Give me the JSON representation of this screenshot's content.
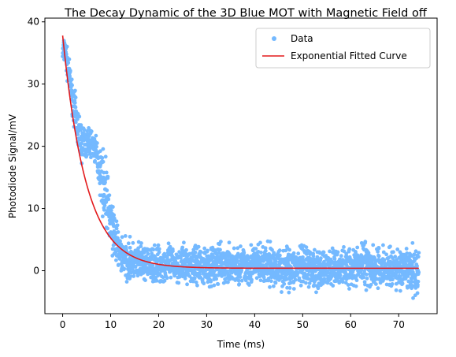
{
  "chart_data": {
    "type": "scatter",
    "title": "The Decay Dynamic of the 3D Blue MOT with Magnetic Field off",
    "xlabel": "Time (ms)",
    "ylabel": "Photodiode Signal/mV",
    "xlim": [
      -3.7,
      78
    ],
    "ylim": [
      -6.9,
      40.6
    ],
    "xticks": [
      0,
      10,
      20,
      30,
      40,
      50,
      60,
      70
    ],
    "yticks": [
      0,
      10,
      20,
      30,
      40
    ],
    "grid": false,
    "legend_position": "top-right",
    "series": [
      {
        "name": "Data",
        "kind": "scatter",
        "color": "#74b9ff",
        "x_range": [
          0,
          74.2
        ],
        "envelope": {
          "x": [
            0,
            0.5,
            1,
            2,
            3,
            4,
            5,
            6,
            7,
            8,
            9,
            10,
            11,
            12,
            13,
            15,
            18,
            20,
            25,
            30,
            35,
            40,
            45,
            50,
            55,
            60,
            62,
            63.5,
            64,
            66,
            70,
            74
          ],
          "upper": [
            37.5,
            38,
            36,
            31,
            28,
            24,
            24,
            23,
            22,
            21,
            19,
            13,
            10,
            7,
            6,
            5,
            4.5,
            4.5,
            4.5,
            5,
            4.5,
            5,
            4.5,
            4.5,
            4,
            4.5,
            4.5,
            7.5,
            4.5,
            4.5,
            4.5,
            4.5
          ],
          "lower": [
            32.5,
            33,
            30,
            25,
            19,
            17,
            17,
            18,
            16,
            10,
            6,
            3,
            0,
            -1.5,
            -2,
            -2.5,
            -2.5,
            -2.5,
            -2.5,
            -3,
            -3,
            -3,
            -3.5,
            -3.5,
            -3.5,
            -3,
            -3,
            -3.5,
            -3,
            -3.5,
            -4,
            -5
          ]
        }
      },
      {
        "name": "Exponential Fitted Curve",
        "kind": "line",
        "color": "#e31a1c",
        "model": "y = A * exp(-x / tau) + C",
        "params": {
          "A": 37.4,
          "tau": 4.9,
          "C": 0.4
        },
        "x_range": [
          0,
          74.2
        ]
      }
    ]
  }
}
